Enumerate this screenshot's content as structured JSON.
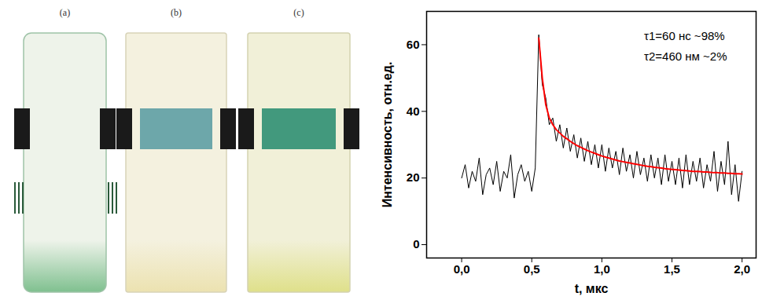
{
  "photos": {
    "labels": [
      "(a)",
      "(b)",
      "(c)"
    ]
  },
  "chart_data": {
    "type": "line",
    "x_label": "t, мкс",
    "y_label": "Интенсивность, отн.ед.",
    "annotations": [
      "τ1=60 нс ~98%",
      "τ2=460 нм ~2%"
    ],
    "xlim": [
      -0.25,
      2.1
    ],
    "ylim": [
      -4,
      70
    ],
    "xticks": [
      {
        "value": 0,
        "label": "0,0"
      },
      {
        "value": 0.5,
        "label": "0,5"
      },
      {
        "value": 1,
        "label": "1,0"
      },
      {
        "value": 1.5,
        "label": "1,5"
      },
      {
        "value": 2,
        "label": "2,0"
      }
    ],
    "yticks": [
      0,
      20,
      40,
      60
    ],
    "grid": false,
    "x": [
      0,
      0.025,
      0.05,
      0.075,
      0.1,
      0.125,
      0.15,
      0.175,
      0.2,
      0.225,
      0.25,
      0.275,
      0.3,
      0.325,
      0.35,
      0.375,
      0.4,
      0.425,
      0.45,
      0.475,
      0.5,
      0.525,
      0.55,
      0.575,
      0.6,
      0.625,
      0.65,
      0.675,
      0.7,
      0.725,
      0.75,
      0.775,
      0.8,
      0.825,
      0.85,
      0.875,
      0.9,
      0.925,
      0.95,
      0.975,
      1,
      1.025,
      1.05,
      1.075,
      1.1,
      1.125,
      1.15,
      1.175,
      1.2,
      1.225,
      1.25,
      1.275,
      1.3,
      1.325,
      1.35,
      1.375,
      1.4,
      1.425,
      1.45,
      1.475,
      1.5,
      1.525,
      1.55,
      1.575,
      1.6,
      1.625,
      1.65,
      1.675,
      1.7,
      1.725,
      1.75,
      1.775,
      1.8,
      1.825,
      1.85,
      1.875,
      1.9,
      1.925,
      1.95,
      1.975,
      2
    ],
    "series": [
      {
        "color": "#000000",
        "line_style": "solid",
        "values": [
          20,
          24,
          17,
          22,
          19,
          26,
          15,
          21,
          23,
          18,
          25,
          16,
          22,
          20,
          27,
          14,
          21,
          24,
          19,
          22,
          16,
          23,
          63,
          48,
          44,
          36,
          38,
          31,
          36,
          29,
          35,
          28,
          33,
          26,
          32,
          25,
          31,
          24,
          30,
          23,
          30,
          22,
          29,
          23,
          28,
          21,
          29,
          22,
          27,
          20,
          28,
          21,
          26,
          19,
          27,
          20,
          26,
          18,
          27,
          19,
          25,
          18,
          26,
          17,
          27,
          18,
          25,
          19,
          26,
          17,
          24,
          19,
          28,
          16,
          25,
          18,
          31,
          15,
          24,
          13,
          22
        ]
      },
      {
        "color": "#ff0000",
        "line_style": "solid",
        "values": [
          null,
          null,
          null,
          null,
          null,
          null,
          null,
          null,
          null,
          null,
          null,
          null,
          null,
          null,
          null,
          null,
          null,
          null,
          null,
          null,
          null,
          null,
          62,
          50,
          42,
          38,
          36,
          34.5,
          33.5,
          32.5,
          31.8,
          31,
          30.3,
          29.7,
          29.2,
          28.7,
          28.2,
          27.8,
          27.4,
          27,
          26.6,
          26.3,
          26,
          25.7,
          25.4,
          25.1,
          24.9,
          24.7,
          24.5,
          24.3,
          24.1,
          23.9,
          23.7,
          23.5,
          23.4,
          23.2,
          23.1,
          23,
          22.8,
          22.7,
          22.6,
          22.5,
          22.4,
          22.3,
          22.2,
          22.1,
          22,
          22,
          21.9,
          21.8,
          21.8,
          21.7,
          21.6,
          21.6,
          21.5,
          21.5,
          21.4,
          21.4,
          21.3,
          21.3,
          21.2
        ]
      }
    ]
  }
}
